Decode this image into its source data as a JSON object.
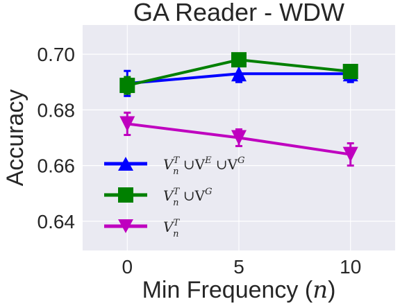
{
  "chart_data": {
    "type": "line",
    "title": "GA Reader - WDW",
    "xlabel": "Min Frequency (",
    "xlabel_var": "n",
    "xlabel_close": ")",
    "ylabel": "Accuracy",
    "x": [
      0,
      5,
      10
    ],
    "x_ticks": [
      "0",
      "5",
      "10"
    ],
    "y_ticks": [
      "0.64",
      "0.66",
      "0.68",
      "0.70"
    ],
    "y_tick_values": [
      0.64,
      0.66,
      0.68,
      0.7
    ],
    "xlim": [
      -2,
      12
    ],
    "ylim": [
      0.6295,
      0.7105
    ],
    "grid": true,
    "legend_position": "bottom-left",
    "series": [
      {
        "legend": [
          "V",
          "T",
          "n",
          " ∪V",
          "E",
          " ∪V",
          "G"
        ],
        "color": "#0000ff",
        "marker": "triangle-up",
        "values": [
          0.6895,
          0.693,
          0.693
        ],
        "errors": [
          0.0045,
          0.003,
          0.003
        ]
      },
      {
        "legend": [
          "V",
          "T",
          "n",
          " ∪V",
          "G"
        ],
        "color": "#008000",
        "marker": "square",
        "values": [
          0.6888,
          0.698,
          0.6938
        ],
        "errors": [
          0.003,
          0.002,
          0.002
        ]
      },
      {
        "legend": [
          "V",
          "T",
          "n"
        ],
        "color": "#bf00bf",
        "marker": "triangle-down",
        "values": [
          0.675,
          0.67,
          0.664
        ],
        "errors": [
          0.004,
          0.003,
          0.004
        ]
      }
    ]
  }
}
